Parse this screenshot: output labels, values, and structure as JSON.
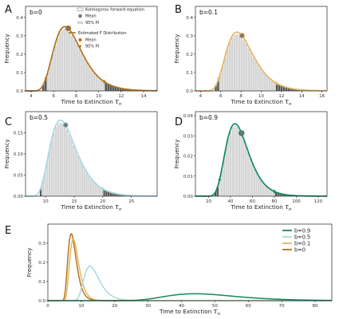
{
  "colors": {
    "b0": "#b5731c",
    "b01": "#e4b566",
    "b05": "#a7d9df",
    "b09": "#118a5e",
    "hist": "#d4d4d4",
    "hist_edge": "#ffffff",
    "pi_region": "#555555",
    "mean_marker": "#777777"
  },
  "legend": {
    "kfe": "Kolmogorov forward equation",
    "mean": "Mean",
    "pi": "95% PI",
    "est": "Estimated F Distribution",
    "est_mean": "Mean",
    "est_pi": "95% PI"
  },
  "chart_data": [
    {
      "panel": "A",
      "type": "bar",
      "b_label": "b=0",
      "color_key": "b0",
      "xlabel": "Time to Extinction",
      "xlabel_symbol": "τ",
      "ylabel": "Frequency",
      "xlim": [
        3.5,
        15.2
      ],
      "ylim": [
        0,
        0.46
      ],
      "xticks": [
        4,
        6,
        8,
        10,
        12,
        14
      ],
      "yticks": [
        0.0,
        0.1,
        0.2,
        0.3,
        0.4
      ],
      "dist": {
        "mode": 7.0,
        "sigma": 1.25,
        "shift": 3.3
      },
      "peak": 0.35,
      "mean": 7.3,
      "pi": [
        5.3,
        10.5
      ],
      "show_legend": true
    },
    {
      "panel": "B",
      "type": "bar",
      "b_label": "b=0.1",
      "color_key": "b01",
      "xlabel": "Time to Extinction",
      "xlabel_symbol": "τ",
      "ylabel": "Frequency",
      "xlim": [
        3.5,
        16.5
      ],
      "ylim": [
        0,
        0.46
      ],
      "xticks": [
        4,
        6,
        8,
        10,
        12,
        14,
        16
      ],
      "yticks": [
        0.0,
        0.1,
        0.2,
        0.3,
        0.4
      ],
      "dist": {
        "mode": 7.6,
        "sigma": 1.35,
        "shift": 3.6
      },
      "peak": 0.32,
      "mean": 8.1,
      "pi": [
        5.8,
        11.5
      ],
      "show_legend": false
    },
    {
      "panel": "C",
      "type": "bar",
      "b_label": "b=0.5",
      "color_key": "b05",
      "xlabel": "Time to Extinction",
      "xlabel_symbol": "τ",
      "ylabel": "Frequency",
      "xlim": [
        6.5,
        29.5
      ],
      "ylim": [
        0,
        0.2
      ],
      "xticks": [
        10,
        15,
        20,
        25
      ],
      "yticks": [
        0.0,
        0.05,
        0.1,
        0.15
      ],
      "dist": {
        "mode": 12.6,
        "sigma": 2.3,
        "shift": 6.0
      },
      "peak": 0.18,
      "mean": 13.5,
      "pi": [
        9.5,
        20.0
      ],
      "show_legend": false
    },
    {
      "panel": "D",
      "type": "bar",
      "b_label": "b=0.9",
      "color_key": "b09",
      "xlabel": "Time to Extinction",
      "xlabel_symbol": "τ",
      "ylabel": "Frequency",
      "xlim": [
        8,
        128
      ],
      "ylim": [
        0,
        0.042
      ],
      "xticks": [
        20,
        40,
        60,
        80,
        100,
        120
      ],
      "yticks": [
        0.0,
        0.01,
        0.02,
        0.03,
        0.04
      ],
      "dist": {
        "mode": 44.0,
        "sigma": 10.5,
        "shift": 10.0
      },
      "peak": 0.036,
      "mean": 50.0,
      "pi": [
        30.0,
        80.0
      ],
      "show_legend": false
    },
    {
      "panel": "E",
      "type": "line",
      "xlabel": "Time to Extinction",
      "xlabel_symbol": "τ",
      "ylabel": "Frequency",
      "xlim": [
        0,
        85
      ],
      "ylim": [
        0,
        0.4
      ],
      "xticks": [
        0,
        10,
        20,
        30,
        40,
        50,
        60,
        70,
        80
      ],
      "yticks": [
        0.0,
        0.1,
        0.2,
        0.3
      ],
      "legend_placement": "top-right",
      "series": [
        {
          "name": "b=0.9",
          "color_key": "b09",
          "dist": {
            "mode": 44.0,
            "sigma": 10.5,
            "shift": 10.0
          },
          "peak": 0.036
        },
        {
          "name": "b=0.5",
          "color_key": "b05",
          "dist": {
            "mode": 12.6,
            "sigma": 2.3,
            "shift": 6.0
          },
          "peak": 0.18
        },
        {
          "name": "b=0.1",
          "color_key": "b01",
          "dist": {
            "mode": 7.6,
            "sigma": 1.35,
            "shift": 3.6
          },
          "peak": 0.32
        },
        {
          "name": "b=0",
          "color_key": "b0",
          "dist": {
            "mode": 7.0,
            "sigma": 1.25,
            "shift": 3.3
          },
          "peak": 0.35
        }
      ]
    }
  ]
}
